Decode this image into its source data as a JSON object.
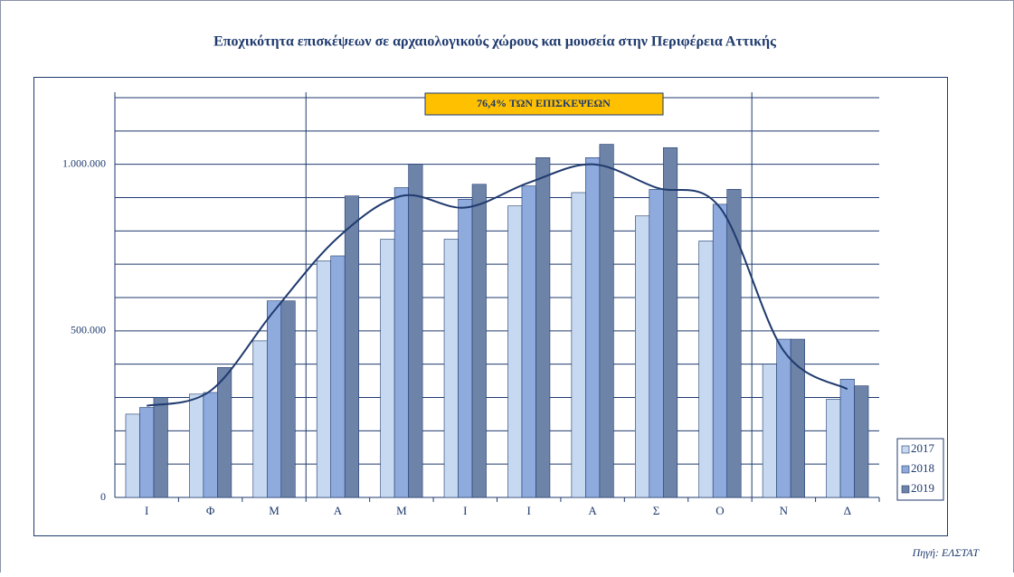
{
  "chart_data": {
    "type": "bar",
    "title": "Εποχικότητα  επισκέψεων σε αρχαιολογικούς χώρους και μουσεία στην Περιφέρεια Αττικής",
    "annotation": "76,4% ΤΩΝ ΕΠΙΣΚΕΨΕΩΝ",
    "source": "Πηγή: ΕΛΣΤΑΤ",
    "categories": [
      "Ι",
      "Φ",
      "Μ",
      "Α",
      "Μ",
      "Ι",
      "Ι",
      "Α",
      "Σ",
      "Ο",
      "Ν",
      "Δ"
    ],
    "series": [
      {
        "name": "2017",
        "color": "#c6d9f0",
        "values": [
          250000,
          310000,
          470000,
          710000,
          775000,
          775000,
          875000,
          915000,
          845000,
          770000,
          400000,
          295000
        ]
      },
      {
        "name": "2018",
        "color": "#8faadc",
        "values": [
          270000,
          315000,
          590000,
          725000,
          930000,
          895000,
          935000,
          1020000,
          925000,
          880000,
          475000,
          355000
        ]
      },
      {
        "name": "2019",
        "color": "#6e83a8",
        "values": [
          300000,
          390000,
          590000,
          905000,
          1000000,
          940000,
          1020000,
          1060000,
          1050000,
          925000,
          475000,
          335000
        ]
      }
    ],
    "trend_line": {
      "color": "#1f3a6e",
      "values": [
        275000,
        320000,
        560000,
        780000,
        905000,
        870000,
        945000,
        1000000,
        930000,
        870000,
        440000,
        325000
      ]
    },
    "ylim": [
      0,
      1200000
    ],
    "yticks": [
      0,
      {
        "value": 500000,
        "label": "500.000"
      },
      {
        "value": 1000000,
        "label": "1.000.000"
      }
    ],
    "minor_yticks": [
      100000,
      200000,
      300000,
      400000,
      600000,
      700000,
      800000,
      900000,
      1100000,
      1200000
    ],
    "grid": true,
    "legend": "right"
  }
}
